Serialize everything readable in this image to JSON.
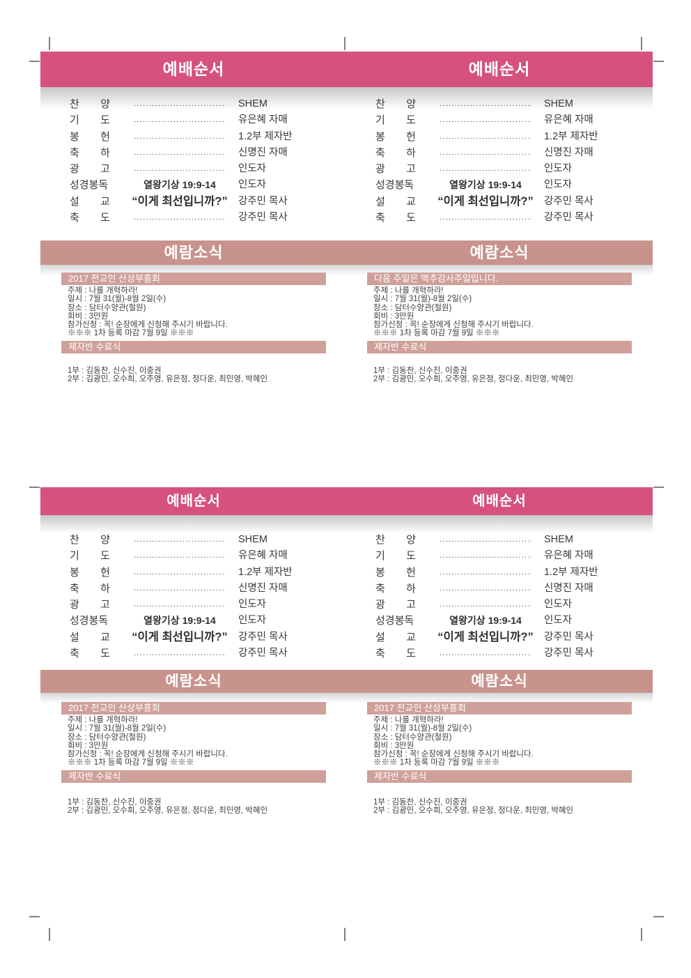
{
  "colors": {
    "header_pink": "#d6517e",
    "news_rose": "#c8938c",
    "subheader_rose": "#cfa09a",
    "body_text": "#3a3a3a",
    "crop_mark": "#818181",
    "shadow_gray": "#c7c7c7"
  },
  "worship_section": {
    "title": "예배순서",
    "leader_dots": "...............................",
    "rows": [
      {
        "label": "찬 양",
        "type": "dots",
        "value": "SHEM"
      },
      {
        "label": "기 도",
        "type": "dots",
        "value": "유은혜 자매"
      },
      {
        "label": "봉 헌",
        "type": "dots",
        "value": "1.2부 제자반"
      },
      {
        "label": "축 하",
        "type": "dots",
        "value": "신명진 자매"
      },
      {
        "label": "광 고",
        "type": "dots",
        "value": "인도자"
      },
      {
        "label": "성경봉독",
        "type": "scripture",
        "middle": "열왕기상 19:9-14",
        "value": "인도자"
      },
      {
        "label": "설 교",
        "type": "sermon",
        "middle": "“이게 최선입니까?”",
        "value": "강주민 목사"
      },
      {
        "label": "축 도",
        "type": "dots",
        "value": "강주민 목사"
      }
    ]
  },
  "news_section": {
    "title": "예람소식",
    "revival": {
      "lines": [
        "주제 : 나를 개혁하라!",
        "일시 : 7월 31(월)-8월 2일(수)",
        "장소 : 담터수양관(철원)",
        "회비 : 3만원",
        "참가신청 : 꼭! 순장에게 신청해 주시기 바랍니다.",
        "※※※ 1차 등록 마감 7월 9일 ※※※"
      ]
    },
    "graduation": {
      "title": "제자반 수료식",
      "lines": [
        "1부 : 김동찬, 신수진, 이중권",
        "2부 : 김광민, 오수희, 오주영, 유은정, 정다운, 최민영, 박혜인"
      ]
    }
  },
  "quadrants": [
    {
      "revival_title": "2017 전교인 산상부흥회"
    },
    {
      "revival_title": "다음 주일은 맥추감사주일입니다."
    },
    {
      "revival_title": "2017 전교인 산상부흥회"
    },
    {
      "revival_title": "2017 전교인 산상부흥회"
    }
  ]
}
